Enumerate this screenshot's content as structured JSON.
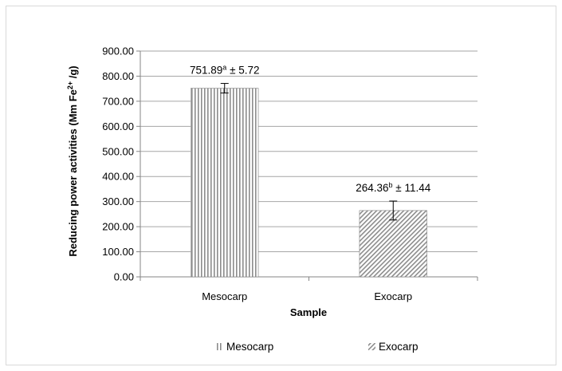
{
  "chart_data": {
    "type": "bar",
    "categories": [
      "Mesocarp",
      "Exocarp"
    ],
    "values": [
      751.89,
      264.36
    ],
    "errors": [
      5.72,
      11.44
    ],
    "ylim": [
      0,
      900
    ],
    "yticks": [
      "0.00",
      "100.00",
      "200.00",
      "300.00",
      "400.00",
      "500.00",
      "600.00",
      "700.00",
      "800.00",
      "900.00"
    ],
    "xlabel": "Sample",
    "ylabel": {
      "main": "Reducing power activities (Mm Fe",
      "sup": "2+",
      "tail": " /g)"
    },
    "annotations": [
      {
        "value": "751.89",
        "letter": "a",
        "pm": " ± 5.72"
      },
      {
        "value": "264.36",
        "letter": "b",
        "pm": " ± 11.44"
      }
    ],
    "legend": {
      "position": "bottom",
      "entries": [
        "Mesocarp",
        "Exocarp"
      ]
    },
    "grid": true,
    "colors": {
      "grid": "#a6a6a6",
      "bar_border": "#7f7f7f",
      "mesocarp_stripe": "#8c8c8c",
      "exocarp_stripe": "#8c8c8c"
    }
  }
}
